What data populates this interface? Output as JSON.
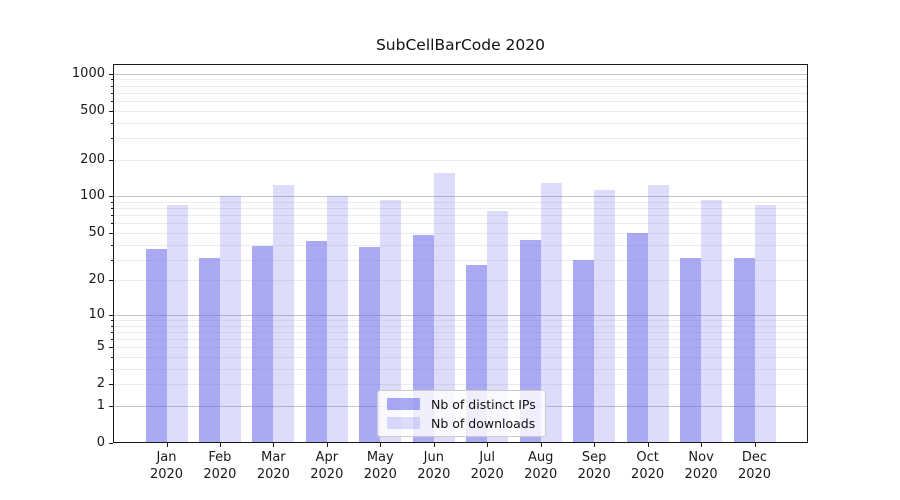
{
  "chart_data": {
    "type": "bar",
    "title": "SubCellBarCode 2020",
    "categories": [
      "Jan",
      "Feb",
      "Mar",
      "Apr",
      "May",
      "Jun",
      "Jul",
      "Aug",
      "Sep",
      "Oct",
      "Nov",
      "Dec"
    ],
    "year_label": "2020",
    "series": [
      {
        "name": "Nb of distinct IPs",
        "color": "rgba(100,100,235,0.55)",
        "values": [
          37,
          31,
          39,
          43,
          38,
          48,
          27,
          44,
          30,
          50,
          31,
          31
        ]
      },
      {
        "name": "Nb of downloads",
        "color": "rgba(100,100,235,0.22)",
        "values": [
          85,
          101,
          125,
          100,
          93,
          155,
          76,
          128,
          113,
          125,
          93,
          85
        ]
      }
    ],
    "yscale": "log1p",
    "yticks": [
      0,
      1,
      2,
      5,
      10,
      20,
      50,
      100,
      200,
      500,
      1000
    ],
    "ylim": [
      0,
      1200
    ],
    "grid": "on",
    "legend_position": "lower-center",
    "colors": {
      "axis": "#1a1a1a",
      "major_grid": "#c4c4c8",
      "minor_grid": "#ececee"
    }
  }
}
